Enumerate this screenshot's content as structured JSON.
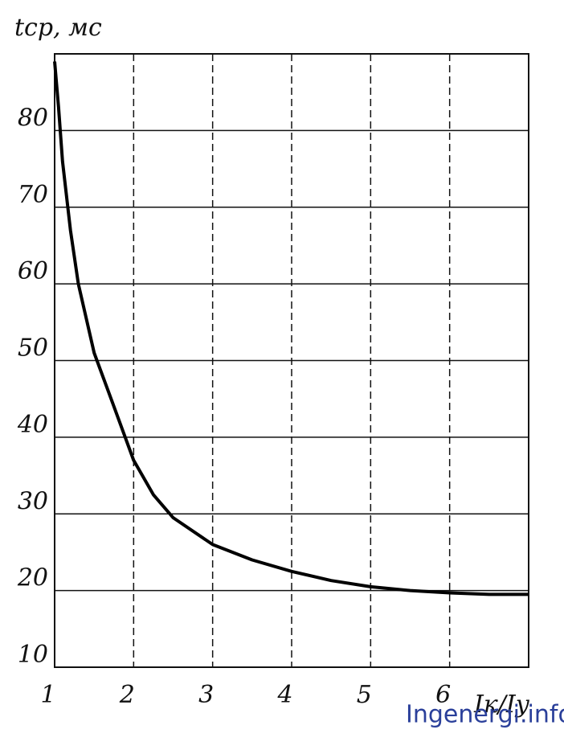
{
  "chart_data": {
    "type": "line",
    "y_label": "tср, мс",
    "x_label": "Iк/Iу",
    "watermark": "Ingenergi.info",
    "x": [
      1.0,
      1.05,
      1.1,
      1.2,
      1.3,
      1.5,
      1.75,
      2.0,
      2.25,
      2.5,
      3.0,
      3.5,
      4.0,
      4.5,
      5.0,
      5.5,
      6.0,
      6.5,
      7.0
    ],
    "series": [
      {
        "name": "tср",
        "color": "#000000",
        "values": [
          89,
          83,
          76,
          67,
          60,
          51,
          44,
          37,
          32.5,
          29.5,
          26,
          24,
          22.5,
          21.3,
          20.5,
          20,
          19.7,
          19.5,
          19.5
        ]
      }
    ],
    "xlim": [
      1,
      7
    ],
    "xticks": [
      1,
      2,
      3,
      4,
      5,
      6
    ],
    "ylim": [
      10,
      90
    ],
    "yticks": [
      10,
      20,
      30,
      40,
      50,
      60,
      70,
      80
    ],
    "grid": true
  }
}
